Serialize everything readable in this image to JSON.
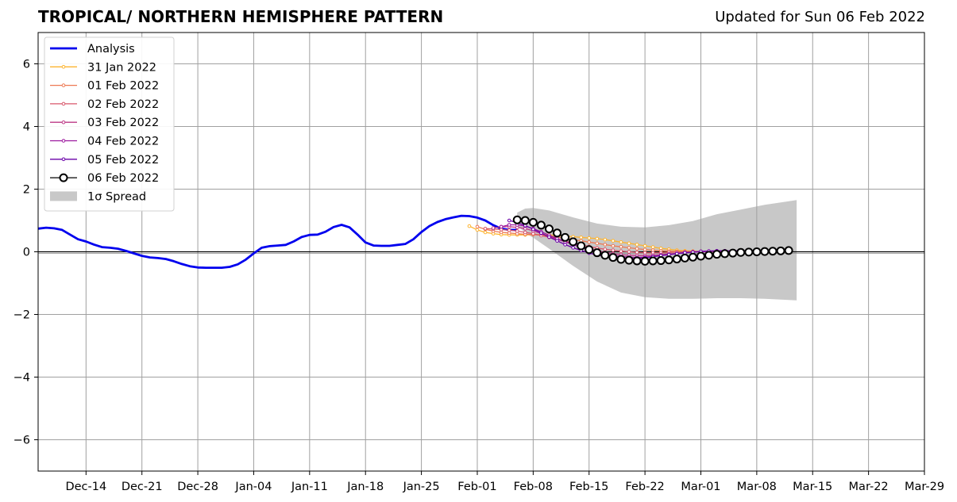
{
  "chart_data": {
    "type": "line",
    "title": "TROPICAL/ NORTHERN HEMISPHERE PATTERN",
    "subtitle": "Updated for Sun 06 Feb 2022",
    "xlabel": "",
    "ylabel": "",
    "xlim": [
      "2021-12-08",
      "2022-03-29"
    ],
    "ylim": [
      -7,
      7
    ],
    "yticks": [
      -6,
      -4,
      -2,
      0,
      2,
      4,
      6
    ],
    "ytick_labels": [
      "−6",
      "−4",
      "−2",
      "0",
      "2",
      "4",
      "6"
    ],
    "xticks": [
      "2021-12-14",
      "2021-12-21",
      "2021-12-28",
      "2022-01-04",
      "2022-01-11",
      "2022-01-18",
      "2022-01-25",
      "2022-02-01",
      "2022-02-08",
      "2022-02-15",
      "2022-02-22",
      "2022-03-01",
      "2022-03-08",
      "2022-03-15",
      "2022-03-22",
      "2022-03-29"
    ],
    "xtick_labels": [
      "Dec-14",
      "Dec-21",
      "Dec-28",
      "Jan-04",
      "Jan-11",
      "Jan-18",
      "Jan-25",
      "Feb-01",
      "Feb-08",
      "Feb-15",
      "Feb-22",
      "Mar-01",
      "Mar-08",
      "Mar-15",
      "Mar-22",
      "Mar-29"
    ],
    "grid": true,
    "legend_position": "upper-left",
    "analysis": {
      "name": "Analysis",
      "color": "#0000ee",
      "start": "2021-12-08",
      "values": [
        0.74,
        0.77,
        0.75,
        0.7,
        0.55,
        0.4,
        0.33,
        0.23,
        0.15,
        0.13,
        0.1,
        0.03,
        -0.05,
        -0.13,
        -0.18,
        -0.2,
        -0.23,
        -0.3,
        -0.39,
        -0.46,
        -0.5,
        -0.51,
        -0.51,
        -0.51,
        -0.48,
        -0.4,
        -0.25,
        -0.05,
        0.13,
        0.18,
        0.2,
        0.22,
        0.33,
        0.47,
        0.54,
        0.55,
        0.64,
        0.79,
        0.86,
        0.78,
        0.55,
        0.3,
        0.2,
        0.19,
        0.19,
        0.22,
        0.25,
        0.4,
        0.63,
        0.82,
        0.95,
        1.04,
        1.1,
        1.15,
        1.14,
        1.09,
        1.0,
        0.85,
        0.74,
        0.7,
        0.7
      ]
    },
    "forecasts": [
      {
        "name": "31 Jan 2022",
        "color": "#fdb42f",
        "start": "2022-01-31",
        "values": [
          0.82,
          0.7,
          0.62,
          0.58,
          0.55,
          0.54,
          0.54,
          0.54,
          0.55,
          0.55,
          0.54,
          0.52,
          0.5,
          0.48,
          0.46,
          0.44,
          0.42,
          0.39,
          0.35,
          0.31,
          0.27,
          0.23,
          0.19,
          0.15,
          0.11,
          0.08,
          0.05,
          0.03,
          0.02,
          0.01,
          0.01,
          0.01,
          0.01,
          0.02,
          0.02,
          0.02
        ]
      },
      {
        "name": "01 Feb 2022",
        "color": "#ed7953",
        "start": "2022-02-01",
        "values": [
          0.8,
          0.72,
          0.66,
          0.62,
          0.6,
          0.58,
          0.56,
          0.55,
          0.53,
          0.5,
          0.47,
          0.43,
          0.39,
          0.35,
          0.31,
          0.27,
          0.23,
          0.19,
          0.16,
          0.13,
          0.1,
          0.07,
          0.05,
          0.03,
          0.02,
          0.01,
          0.0,
          0.0,
          0.0,
          0.01,
          0.01,
          0.01,
          0.01,
          0.02,
          0.02
        ]
      },
      {
        "name": "02 Feb 2022",
        "color": "#d8576b",
        "start": "2022-02-02",
        "values": [
          0.74,
          0.73,
          0.71,
          0.69,
          0.66,
          0.62,
          0.58,
          0.52,
          0.46,
          0.4,
          0.34,
          0.28,
          0.22,
          0.17,
          0.12,
          0.08,
          0.05,
          0.02,
          0.0,
          -0.02,
          -0.03,
          -0.03,
          -0.03,
          -0.02,
          -0.01,
          0.0,
          0.01,
          0.01,
          0.02,
          0.02,
          0.02,
          0.02,
          0.03,
          0.03
        ]
      },
      {
        "name": "03 Feb 2022",
        "color": "#bd3786",
        "start": "2022-02-03",
        "values": [
          0.76,
          0.8,
          0.8,
          0.78,
          0.74,
          0.67,
          0.58,
          0.49,
          0.4,
          0.32,
          0.24,
          0.17,
          0.1,
          0.04,
          -0.02,
          -0.06,
          -0.09,
          -0.11,
          -0.12,
          -0.12,
          -0.11,
          -0.09,
          -0.07,
          -0.05,
          -0.03,
          -0.01,
          0.0,
          0.01,
          0.02,
          0.02,
          0.02,
          0.02,
          0.02
        ]
      },
      {
        "name": "04 Feb 2022",
        "color": "#9c179e",
        "start": "2022-02-04",
        "values": [
          0.8,
          0.86,
          0.86,
          0.82,
          0.74,
          0.64,
          0.53,
          0.42,
          0.32,
          0.23,
          0.14,
          0.06,
          -0.01,
          -0.07,
          -0.12,
          -0.15,
          -0.17,
          -0.18,
          -0.17,
          -0.15,
          -0.12,
          -0.09,
          -0.06,
          -0.03,
          -0.01,
          0.01,
          0.02,
          0.03,
          0.03,
          0.03,
          0.03,
          0.03
        ]
      },
      {
        "name": "05 Feb 2022",
        "color": "#6a00a8",
        "start": "2022-02-05",
        "values": [
          1.0,
          0.93,
          0.84,
          0.72,
          0.6,
          0.47,
          0.35,
          0.23,
          0.13,
          0.04,
          -0.04,
          -0.1,
          -0.15,
          -0.19,
          -0.21,
          -0.22,
          -0.21,
          -0.19,
          -0.16,
          -0.12,
          -0.09,
          -0.06,
          -0.03,
          -0.01,
          0.01,
          0.02,
          0.03,
          0.03,
          0.03,
          0.03,
          0.03
        ]
      },
      {
        "name": "06 Feb 2022",
        "color": "#000000",
        "start": "2022-02-06",
        "values": [
          1.02,
          1.0,
          0.94,
          0.85,
          0.73,
          0.6,
          0.46,
          0.32,
          0.19,
          0.07,
          -0.03,
          -0.11,
          -0.18,
          -0.24,
          -0.27,
          -0.29,
          -0.3,
          -0.29,
          -0.28,
          -0.26,
          -0.23,
          -0.2,
          -0.17,
          -0.14,
          -0.11,
          -0.08,
          -0.06,
          -0.04,
          -0.02,
          -0.01,
          0.0,
          0.01,
          0.02,
          0.03,
          0.04
        ]
      }
    ],
    "spread": {
      "name": "1σ Spread",
      "color": "#c8c8c8",
      "x": [
        "2022-02-06",
        "2022-02-07",
        "2022-02-08",
        "2022-02-10",
        "2022-02-13",
        "2022-02-16",
        "2022-02-19",
        "2022-02-22",
        "2022-02-25",
        "2022-02-28",
        "2022-03-03",
        "2022-03-06",
        "2022-03-09",
        "2022-03-13"
      ],
      "upper": [
        1.25,
        1.38,
        1.4,
        1.32,
        1.1,
        0.9,
        0.8,
        0.78,
        0.85,
        0.98,
        1.2,
        1.35,
        1.5,
        1.65
      ],
      "lower": [
        0.85,
        0.6,
        0.45,
        0.1,
        -0.45,
        -0.95,
        -1.3,
        -1.45,
        -1.5,
        -1.5,
        -1.48,
        -1.48,
        -1.5,
        -1.55
      ]
    }
  }
}
